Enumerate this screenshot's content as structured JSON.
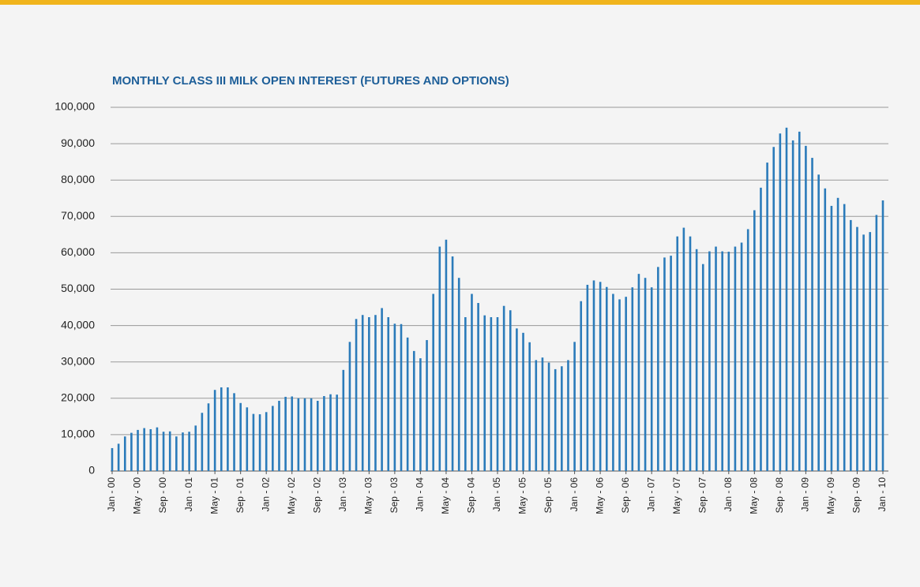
{
  "chart_data": {
    "type": "bar",
    "title": "MONTHLY CLASS III MILK OPEN INTEREST (FUTURES AND OPTIONS)",
    "categories": [
      "Jan - 00",
      null,
      null,
      null,
      "May - 00",
      null,
      null,
      null,
      "Sep - 00",
      null,
      null,
      null,
      "Jan - 01",
      null,
      null,
      null,
      "May - 01",
      null,
      null,
      null,
      "Sep - 01",
      null,
      null,
      null,
      "Jan - 02",
      null,
      null,
      null,
      "May - 02",
      null,
      null,
      null,
      "Sep - 02",
      null,
      null,
      null,
      "Jan - 03",
      null,
      null,
      null,
      "May - 03",
      null,
      null,
      null,
      "Sep - 03",
      null,
      null,
      null,
      "Jan - 04",
      null,
      null,
      null,
      "May - 04",
      null,
      null,
      null,
      "Sep - 04",
      null,
      null,
      null,
      "Jan - 05",
      null,
      null,
      null,
      "May - 05",
      null,
      null,
      null,
      "Sep - 05",
      null,
      null,
      null,
      "Jan - 06",
      null,
      null,
      null,
      "May - 06",
      null,
      null,
      null,
      "Sep - 06",
      null,
      null,
      null,
      "Jan - 07",
      null,
      null,
      null,
      "May - 07",
      null,
      null,
      null,
      "Sep - 07",
      null,
      null,
      null,
      "Jan - 08",
      null,
      null,
      null,
      "May - 08",
      null,
      null,
      null,
      "Sep - 08",
      null,
      null,
      null,
      "Jan - 09",
      null,
      null,
      null,
      "May - 09",
      null,
      null,
      null,
      "Sep - 09",
      null,
      null,
      null,
      "Jan - 10"
    ],
    "values": [
      6300,
      7500,
      9500,
      10500,
      11300,
      11800,
      11500,
      12000,
      10800,
      10900,
      9500,
      10600,
      10800,
      12500,
      16000,
      18600,
      22300,
      23000,
      23000,
      21400,
      18700,
      17500,
      15700,
      15600,
      16200,
      17900,
      19300,
      20400,
      20500,
      20000,
      20000,
      20000,
      19300,
      20600,
      21100,
      21000,
      27800,
      35500,
      41800,
      42900,
      42300,
      42900,
      44800,
      42300,
      40500,
      40400,
      36700,
      33000,
      31000,
      36000,
      48700,
      61700,
      63600,
      59000,
      53100,
      42300,
      48700,
      46200,
      42800,
      42300,
      42300,
      45400,
      44200,
      39200,
      38000,
      35400,
      30500,
      31200,
      29800,
      28000,
      28800,
      30500,
      35500,
      46700,
      51200,
      52400,
      52000,
      50600,
      48700,
      47200,
      47900,
      50500,
      54200,
      53100,
      50500,
      56100,
      58700,
      59200,
      64500,
      66900,
      64500,
      61000,
      56900,
      60400,
      61700,
      60400,
      60300,
      61700,
      62800,
      66500,
      71700,
      77900,
      84800,
      89100,
      92800,
      94400,
      90900,
      93300,
      89400,
      86100,
      81500,
      77700,
      72900,
      75100,
      73400,
      69000,
      67100,
      65000,
      65700,
      70400,
      74400
    ],
    "color": "#2b7bba",
    "ylim": [
      0,
      100000
    ],
    "yticks": [
      0,
      {
        "value": 10000,
        "label": "10,000"
      },
      {
        "value": 20000,
        "label": "20,000"
      },
      {
        "value": 30000,
        "label": "30,000"
      },
      {
        "value": 40000,
        "label": "40,000"
      },
      {
        "value": 50000,
        "label": "50,000"
      },
      {
        "value": 60000,
        "label": "60,000"
      },
      {
        "value": 70000,
        "label": "70,000"
      },
      {
        "value": 80000,
        "label": "80,000"
      },
      {
        "value": 90000,
        "label": "90,000"
      },
      {
        "value": 100000,
        "label": "100,000"
      }
    ],
    "grid": true
  }
}
